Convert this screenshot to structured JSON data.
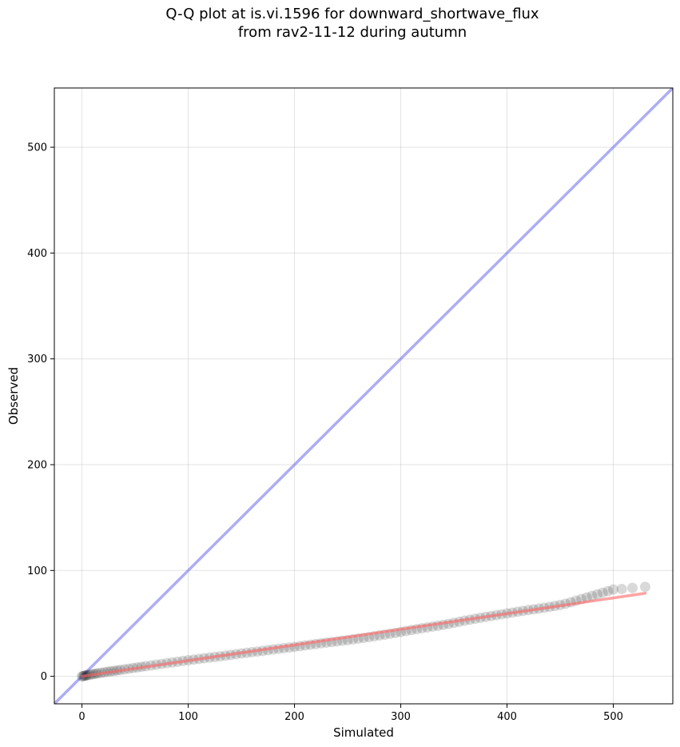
{
  "chart_data": {
    "type": "scatter",
    "title": "Q-Q plot at is.vi.1596 for downward_shortwave_flux\nfrom rav2-11-12 during autumn",
    "xlabel": "Simulated",
    "ylabel": "Observed",
    "xlim": [
      -26,
      556
    ],
    "ylim": [
      -26,
      556
    ],
    "xticks": [
      0,
      100,
      200,
      300,
      400,
      500
    ],
    "yticks": [
      0,
      100,
      200,
      300,
      400,
      500
    ],
    "grid": true,
    "series": [
      {
        "role": "quantile-points",
        "color": "#000000",
        "opacity": 0.15,
        "points": [
          [
            0,
            0
          ],
          [
            1,
            0.2
          ],
          [
            2,
            0.4
          ],
          [
            3,
            0.6
          ],
          [
            4,
            0.9
          ],
          [
            5,
            1.1
          ],
          [
            7,
            1.4
          ],
          [
            9,
            1.8
          ],
          [
            11,
            2.1
          ],
          [
            13,
            2.5
          ],
          [
            15,
            2.8
          ],
          [
            18,
            3.3
          ],
          [
            21,
            3.8
          ],
          [
            24,
            4.3
          ],
          [
            27,
            4.7
          ],
          [
            30,
            5.1
          ],
          [
            33,
            5.6
          ],
          [
            36,
            6
          ],
          [
            40,
            6.6
          ],
          [
            44,
            7.2
          ],
          [
            48,
            7.8
          ],
          [
            52,
            8.4
          ],
          [
            56,
            9
          ],
          [
            60,
            9.6
          ],
          [
            65,
            10.3
          ],
          [
            70,
            11
          ],
          [
            75,
            11.7
          ],
          [
            80,
            12.4
          ],
          [
            85,
            13.1
          ],
          [
            90,
            13.8
          ],
          [
            95,
            14.5
          ],
          [
            100,
            15.2
          ],
          [
            105,
            15.8
          ],
          [
            110,
            16.4
          ],
          [
            115,
            17.1
          ],
          [
            120,
            17.7
          ],
          [
            125,
            18.3
          ],
          [
            130,
            18.9
          ],
          [
            135,
            19.5
          ],
          [
            140,
            20.2
          ],
          [
            145,
            20.9
          ],
          [
            150,
            21.6
          ],
          [
            155,
            22.2
          ],
          [
            160,
            22.8
          ],
          [
            165,
            23.4
          ],
          [
            170,
            24
          ],
          [
            175,
            24.7
          ],
          [
            180,
            25.4
          ],
          [
            185,
            26
          ],
          [
            190,
            26.6
          ],
          [
            195,
            27.2
          ],
          [
            200,
            27.8
          ],
          [
            205,
            28.5
          ],
          [
            210,
            29.2
          ],
          [
            215,
            29.8
          ],
          [
            220,
            30.5
          ],
          [
            225,
            31.2
          ],
          [
            230,
            31.8
          ],
          [
            235,
            32.4
          ],
          [
            240,
            33
          ],
          [
            245,
            33.6
          ],
          [
            250,
            34.2
          ],
          [
            255,
            34.9
          ],
          [
            260,
            35.6
          ],
          [
            265,
            36.3
          ],
          [
            270,
            37
          ],
          [
            275,
            37.8
          ],
          [
            280,
            38.6
          ],
          [
            285,
            39.4
          ],
          [
            290,
            40.2
          ],
          [
            295,
            41
          ],
          [
            300,
            41.9
          ],
          [
            305,
            42.8
          ],
          [
            310,
            43.7
          ],
          [
            315,
            44.6
          ],
          [
            320,
            45.4
          ],
          [
            325,
            46.2
          ],
          [
            330,
            47
          ],
          [
            335,
            47.8
          ],
          [
            340,
            48.6
          ],
          [
            345,
            49.5
          ],
          [
            350,
            50.5
          ],
          [
            355,
            51.5
          ],
          [
            360,
            52.6
          ],
          [
            365,
            53.5
          ],
          [
            370,
            54.4
          ],
          [
            375,
            55.3
          ],
          [
            380,
            56.2
          ],
          [
            385,
            57
          ],
          [
            390,
            57.8
          ],
          [
            395,
            58.6
          ],
          [
            400,
            59.4
          ],
          [
            405,
            60.2
          ],
          [
            410,
            61
          ],
          [
            415,
            61.8
          ],
          [
            420,
            62.6
          ],
          [
            425,
            63.3
          ],
          [
            430,
            64
          ],
          [
            435,
            64.8
          ],
          [
            440,
            65.6
          ],
          [
            445,
            66.5
          ],
          [
            450,
            67.4
          ],
          [
            455,
            68.6
          ],
          [
            460,
            70
          ],
          [
            465,
            71.5
          ],
          [
            470,
            73
          ],
          [
            475,
            74.5
          ],
          [
            480,
            76
          ],
          [
            485,
            77.5
          ],
          [
            490,
            79
          ],
          [
            495,
            80.5
          ],
          [
            500,
            82
          ],
          [
            508,
            82.5
          ],
          [
            518,
            83.5
          ],
          [
            530,
            84.5
          ]
        ]
      },
      {
        "role": "one-to-one-line",
        "color": "#7777ee",
        "opacity": 0.6,
        "x": [
          -26,
          556
        ],
        "y": [
          -26,
          556
        ]
      },
      {
        "role": "fit-line",
        "color": "#ff6666",
        "opacity": 0.6,
        "x": [
          0,
          530
        ],
        "y": [
          0,
          78.5
        ]
      }
    ]
  }
}
